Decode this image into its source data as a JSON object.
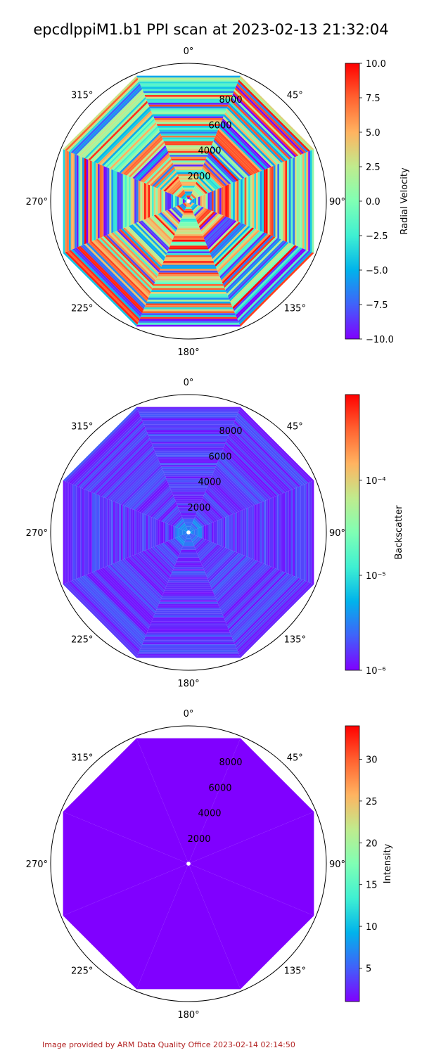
{
  "title": "epcdlppiM1.b1 PPI scan at 2023-02-13 21:32:04",
  "footer": "Image provided by ARM Data Quality Office 2023-02-14 02:14:50",
  "chart_data": [
    {
      "type": "heatmap",
      "projection": "polar",
      "rmax": 10000,
      "radial_ticks": [
        "2000",
        "4000",
        "6000",
        "8000"
      ],
      "angle_ticks": [
        "0°",
        "45°",
        "90°",
        "135°",
        "180°",
        "225°",
        "270°",
        "315°"
      ],
      "scan_extent_m": 9700,
      "colorbar": {
        "label": "Radial Velocity",
        "scale": "linear",
        "range": [
          -10.0,
          10.0
        ],
        "ticks": [
          "10.0",
          "7.5",
          "5.0",
          "2.5",
          "0.0",
          "−2.5",
          "−5.0",
          "−7.5",
          "−10.0"
        ]
      },
      "pattern": "noisy"
    },
    {
      "type": "heatmap",
      "projection": "polar",
      "rmax": 10000,
      "radial_ticks": [
        "2000",
        "4000",
        "6000",
        "8000"
      ],
      "angle_ticks": [
        "0°",
        "45°",
        "90°",
        "135°",
        "180°",
        "225°",
        "270°",
        "315°"
      ],
      "scan_extent_m": 9700,
      "colorbar": {
        "label": "Backscatter",
        "scale": "log",
        "range": [
          1e-06,
          0.0008
        ],
        "ticks": [
          "10⁻⁴",
          "10⁻⁵",
          "10⁻⁶"
        ]
      },
      "pattern": "low"
    },
    {
      "type": "heatmap",
      "projection": "polar",
      "rmax": 10000,
      "radial_ticks": [
        "2000",
        "4000",
        "6000",
        "8000"
      ],
      "angle_ticks": [
        "0°",
        "45°",
        "90°",
        "135°",
        "180°",
        "225°",
        "270°",
        "315°"
      ],
      "scan_extent_m": 9700,
      "colorbar": {
        "label": "Intensity",
        "scale": "linear",
        "range": [
          1.0,
          34.0
        ],
        "ticks": [
          "30",
          "25",
          "20",
          "15",
          "10",
          "5"
        ]
      },
      "pattern": "uniform"
    }
  ]
}
